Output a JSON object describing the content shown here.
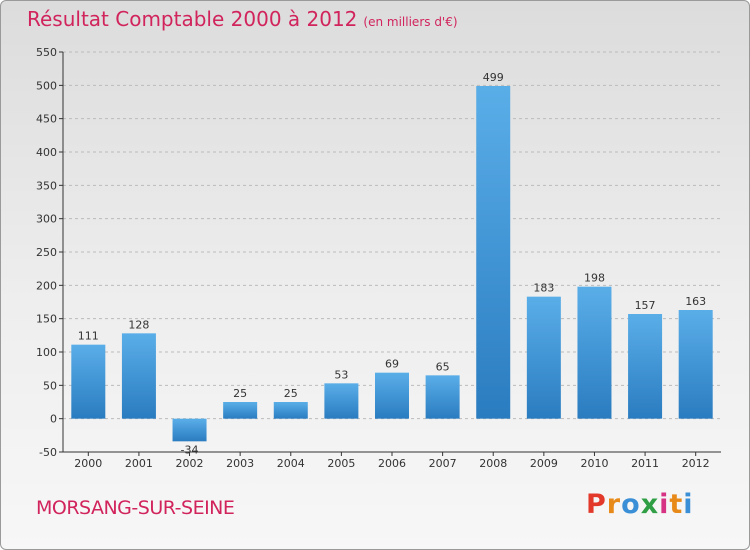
{
  "header": {
    "title": "Résultat Comptable 2000 à 2012",
    "subtitle": "(en milliers d'€)"
  },
  "footer": {
    "commune": "MORSANG-SUR-SEINE",
    "brand_letters": [
      "P",
      "r",
      "o",
      "x",
      "i",
      "t",
      "i"
    ],
    "brand_colors": [
      "#e2392b",
      "#e88a1a",
      "#3a8fd6",
      "#2f9e44",
      "#d63384",
      "#e88a1a",
      "#3a8fd6"
    ]
  },
  "colors": {
    "title": "#d1245c",
    "bar_top": "#5aaee8",
    "bar_bottom": "#2a7cc0",
    "axis": "#333333",
    "grid": "#bbbbbb"
  },
  "chart_data": {
    "type": "bar",
    "title": "Résultat Comptable 2000 à 2012",
    "xlabel": "",
    "ylabel": "",
    "categories": [
      "2000",
      "2001",
      "2002",
      "2003",
      "2004",
      "2005",
      "2006",
      "2007",
      "2008",
      "2009",
      "2010",
      "2011",
      "2012"
    ],
    "values": [
      111,
      128,
      -34,
      25,
      25,
      53,
      69,
      65,
      499,
      183,
      198,
      157,
      163
    ],
    "ylim": [
      -50,
      550
    ],
    "yticks": [
      -50,
      0,
      50,
      100,
      150,
      200,
      250,
      300,
      350,
      400,
      450,
      500,
      550
    ],
    "grid": "horizontal-dashed"
  }
}
